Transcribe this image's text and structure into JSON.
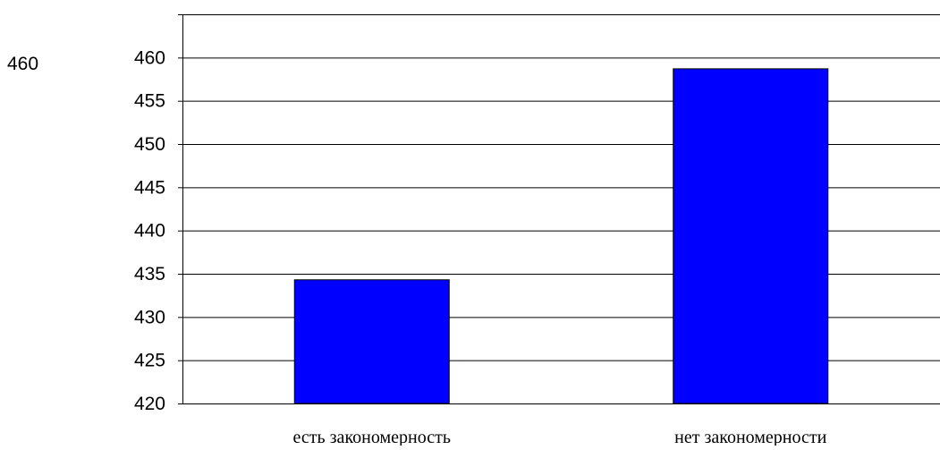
{
  "stray_label": "460",
  "chart_data": {
    "type": "bar",
    "title": "",
    "xlabel": "",
    "ylabel": "",
    "categories": [
      "есть закономерность",
      "нет закономерности"
    ],
    "values": [
      434.3,
      458.7
    ],
    "ylim": [
      420,
      465
    ],
    "yticks": [
      420,
      425,
      430,
      435,
      440,
      445,
      450,
      455,
      460
    ],
    "grid": true,
    "legend": "none",
    "bar_color": "#0000ff",
    "bar_edge_color": "#000000",
    "grid_color": "#000000"
  }
}
